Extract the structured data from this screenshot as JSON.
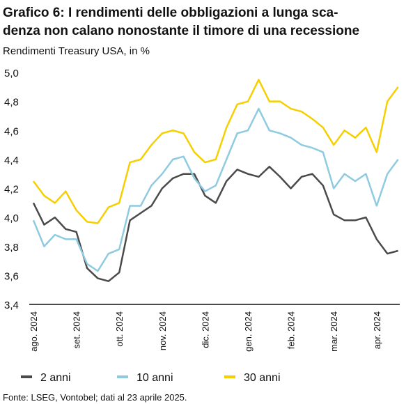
{
  "chart_data": {
    "type": "line",
    "title": [
      "Grafico 6: I rendimenti delle obbligazioni a lunga sca-",
      "denza non calano nonostante il timore di una recessione"
    ],
    "subtitle": "Rendimenti Treasury USA, in %",
    "source": "Fonte: LSEG, Vontobel; dati al 23 aprile 2025.",
    "categories": [
      "ago. 2024",
      null,
      null,
      null,
      "set. 2024",
      null,
      null,
      null,
      "ott. 2024",
      null,
      null,
      null,
      "nov. 2024",
      null,
      null,
      null,
      "dic. 2024",
      null,
      null,
      null,
      "gen. 2024",
      null,
      null,
      null,
      "feb. 2024",
      null,
      null,
      null,
      "mar. 2024",
      null,
      null,
      null,
      "apr. 2024",
      null,
      null
    ],
    "series": [
      {
        "name": "2 anni",
        "color": "#4a4a4a",
        "values": [
          4.1,
          3.95,
          4.0,
          3.92,
          3.9,
          3.65,
          3.58,
          3.56,
          3.62,
          3.98,
          4.03,
          4.08,
          4.2,
          4.27,
          4.3,
          4.3,
          4.15,
          4.1,
          4.25,
          4.33,
          4.3,
          4.28,
          4.35,
          4.28,
          4.2,
          4.28,
          4.3,
          4.22,
          4.02,
          3.98,
          3.98,
          4.0,
          3.85,
          3.75,
          3.77
        ]
      },
      {
        "name": "10 anni",
        "color": "#8fcbe0",
        "values": [
          3.98,
          3.8,
          3.88,
          3.85,
          3.85,
          3.68,
          3.63,
          3.75,
          3.78,
          4.08,
          4.08,
          4.22,
          4.3,
          4.4,
          4.42,
          4.27,
          4.18,
          4.22,
          4.4,
          4.58,
          4.6,
          4.75,
          4.6,
          4.58,
          4.55,
          4.5,
          4.48,
          4.45,
          4.2,
          4.3,
          4.25,
          4.3,
          4.08,
          4.3,
          4.4
        ]
      },
      {
        "name": "30 anni",
        "color": "#f5cf00",
        "values": [
          4.25,
          4.15,
          4.1,
          4.18,
          4.05,
          3.97,
          3.96,
          4.07,
          4.1,
          4.38,
          4.4,
          4.5,
          4.58,
          4.6,
          4.58,
          4.45,
          4.38,
          4.4,
          4.62,
          4.78,
          4.8,
          4.95,
          4.8,
          4.8,
          4.75,
          4.73,
          4.68,
          4.62,
          4.5,
          4.6,
          4.55,
          4.62,
          4.45,
          4.8,
          4.9
        ]
      }
    ],
    "ylim": [
      3.4,
      5.0
    ],
    "yticks": [
      {
        "value": 3.4,
        "label": "3,4"
      },
      {
        "value": 3.6,
        "label": "3,6"
      },
      {
        "value": 3.8,
        "label": "3,8"
      },
      {
        "value": 4.0,
        "label": "4,0"
      },
      {
        "value": 4.2,
        "label": "4,2"
      },
      {
        "value": 4.4,
        "label": "4,4"
      },
      {
        "value": 4.6,
        "label": "4,6"
      },
      {
        "value": 4.8,
        "label": "4,8"
      },
      {
        "value": 5.0,
        "label": "5,0"
      }
    ]
  }
}
